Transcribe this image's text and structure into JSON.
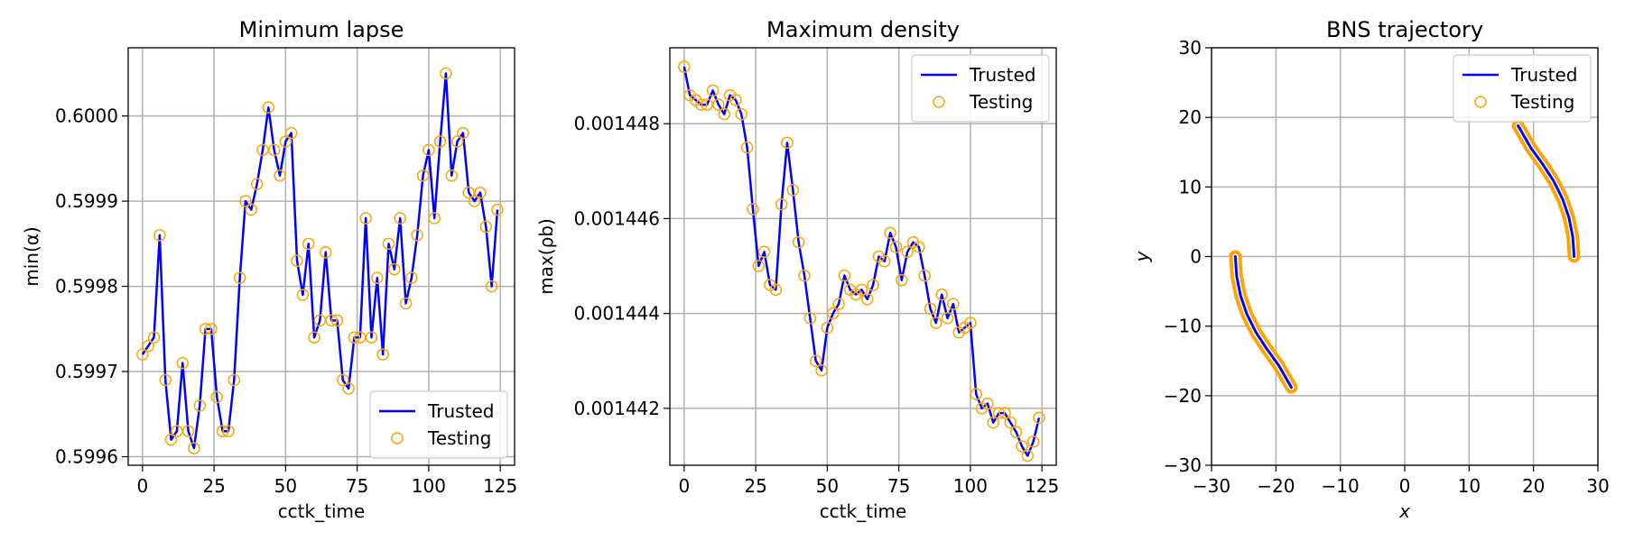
{
  "colors": {
    "trusted": "#0000ff",
    "testing": "#ffa500",
    "grid": "#b0b0b0"
  },
  "chart_data": [
    {
      "type": "line",
      "title": "Minimum lapse",
      "xlabel": "cctk_time",
      "ylabel": "min(α)",
      "xlim": [
        -5,
        130
      ],
      "ylim": [
        0.59959,
        0.60008
      ],
      "xticks": [
        "0",
        "25",
        "50",
        "75",
        "100",
        "125"
      ],
      "yticks": [
        "0.5996",
        "0.5997",
        "0.5998",
        "0.5999",
        "0.6000"
      ],
      "grid": true,
      "legend": {
        "position": "lower-right",
        "entries": [
          "Trusted",
          "Testing"
        ]
      },
      "x": [
        0,
        2,
        4,
        6,
        8,
        10,
        12,
        14,
        16,
        18,
        20,
        22,
        24,
        26,
        28,
        30,
        32,
        34,
        36,
        38,
        40,
        42,
        44,
        46,
        48,
        50,
        52,
        54,
        56,
        58,
        60,
        62,
        64,
        66,
        68,
        70,
        72,
        74,
        76,
        78,
        80,
        82,
        84,
        86,
        88,
        90,
        92,
        94,
        96,
        98,
        100,
        102,
        104,
        106,
        108,
        110,
        112,
        114,
        116,
        118,
        120,
        122,
        124
      ],
      "series": [
        {
          "name": "Trusted",
          "style": "line",
          "values": [
            0.59972,
            0.59973,
            0.59974,
            0.59986,
            0.59969,
            0.59962,
            0.59963,
            0.59971,
            0.59963,
            0.59961,
            0.59966,
            0.59975,
            0.59975,
            0.59967,
            0.59963,
            0.59963,
            0.59969,
            0.59981,
            0.5999,
            0.59989,
            0.59992,
            0.59996,
            0.60001,
            0.59996,
            0.59993,
            0.59997,
            0.59998,
            0.59983,
            0.59979,
            0.59985,
            0.59974,
            0.59976,
            0.59984,
            0.59976,
            0.59976,
            0.59969,
            0.59968,
            0.59974,
            0.59974,
            0.59988,
            0.59974,
            0.59981,
            0.59972,
            0.59985,
            0.59982,
            0.59988,
            0.59978,
            0.59981,
            0.59986,
            0.59993,
            0.59996,
            0.59988,
            0.59997,
            0.60005,
            0.59993,
            0.59997,
            0.59998,
            0.59991,
            0.5999,
            0.59991,
            0.59987,
            0.5998,
            0.59989
          ]
        },
        {
          "name": "Testing",
          "style": "markers",
          "values": [
            0.59972,
            0.59973,
            0.59974,
            0.59986,
            0.59969,
            0.59962,
            0.59963,
            0.59971,
            0.59963,
            0.59961,
            0.59966,
            0.59975,
            0.59975,
            0.59967,
            0.59963,
            0.59963,
            0.59969,
            0.59981,
            0.5999,
            0.59989,
            0.59992,
            0.59996,
            0.60001,
            0.59996,
            0.59993,
            0.59997,
            0.59998,
            0.59983,
            0.59979,
            0.59985,
            0.59974,
            0.59976,
            0.59984,
            0.59976,
            0.59976,
            0.59969,
            0.59968,
            0.59974,
            0.59974,
            0.59988,
            0.59974,
            0.59981,
            0.59972,
            0.59985,
            0.59982,
            0.59988,
            0.59978,
            0.59981,
            0.59986,
            0.59993,
            0.59996,
            0.59988,
            0.59997,
            0.60005,
            0.59993,
            0.59997,
            0.59998,
            0.59991,
            0.5999,
            0.59991,
            0.59987,
            0.5998,
            0.59989
          ]
        }
      ]
    },
    {
      "type": "line",
      "title": "Maximum density",
      "xlabel": "cctk_time",
      "ylabel": "max(ρb)",
      "xlim": [
        -5,
        130
      ],
      "ylim": [
        0.0014408,
        0.0014496
      ],
      "xticks": [
        "0",
        "25",
        "50",
        "75",
        "100",
        "125"
      ],
      "yticks": [
        "0.001442",
        "0.001444",
        "0.001446",
        "0.001448"
      ],
      "grid": true,
      "legend": {
        "position": "top-right",
        "entries": [
          "Trusted",
          "Testing"
        ]
      },
      "x": [
        0,
        2,
        4,
        6,
        8,
        10,
        12,
        14,
        16,
        18,
        20,
        22,
        24,
        26,
        28,
        30,
        32,
        34,
        36,
        38,
        40,
        42,
        44,
        46,
        48,
        50,
        52,
        54,
        56,
        58,
        60,
        62,
        64,
        66,
        68,
        70,
        72,
        74,
        76,
        78,
        80,
        82,
        84,
        86,
        88,
        90,
        92,
        94,
        96,
        98,
        100,
        102,
        104,
        106,
        108,
        110,
        112,
        114,
        116,
        118,
        120,
        122,
        124
      ],
      "series": [
        {
          "name": "Trusted",
          "style": "line",
          "values": [
            0.0014492,
            0.0014486,
            0.0014485,
            0.0014484,
            0.0014484,
            0.0014487,
            0.0014484,
            0.0014482,
            0.0014486,
            0.0014485,
            0.0014482,
            0.0014475,
            0.0014462,
            0.001445,
            0.0014453,
            0.0014446,
            0.0014445,
            0.0014463,
            0.0014476,
            0.0014466,
            0.0014455,
            0.0014448,
            0.0014439,
            0.001443,
            0.0014428,
            0.0014437,
            0.001444,
            0.0014442,
            0.0014448,
            0.0014445,
            0.0014444,
            0.0014445,
            0.0014443,
            0.0014446,
            0.0014452,
            0.0014451,
            0.0014457,
            0.0014454,
            0.0014447,
            0.0014453,
            0.0014455,
            0.0014454,
            0.0014448,
            0.0014441,
            0.0014438,
            0.0014444,
            0.0014439,
            0.0014442,
            0.0014436,
            0.0014437,
            0.0014438,
            0.0014423,
            0.001442,
            0.0014421,
            0.0014417,
            0.0014419,
            0.0014419,
            0.0014417,
            0.0014415,
            0.0014412,
            0.001441,
            0.0014413,
            0.0014418
          ]
        },
        {
          "name": "Testing",
          "style": "markers",
          "values": [
            0.0014492,
            0.0014486,
            0.0014485,
            0.0014484,
            0.0014484,
            0.0014487,
            0.0014484,
            0.0014482,
            0.0014486,
            0.0014485,
            0.0014482,
            0.0014475,
            0.0014462,
            0.001445,
            0.0014453,
            0.0014446,
            0.0014445,
            0.0014463,
            0.0014476,
            0.0014466,
            0.0014455,
            0.0014448,
            0.0014439,
            0.001443,
            0.0014428,
            0.0014437,
            0.001444,
            0.0014442,
            0.0014448,
            0.0014445,
            0.0014444,
            0.0014445,
            0.0014443,
            0.0014446,
            0.0014452,
            0.0014451,
            0.0014457,
            0.0014454,
            0.0014447,
            0.0014453,
            0.0014455,
            0.0014454,
            0.0014448,
            0.0014441,
            0.0014438,
            0.0014444,
            0.0014439,
            0.0014442,
            0.0014436,
            0.0014437,
            0.0014438,
            0.0014423,
            0.001442,
            0.0014421,
            0.0014417,
            0.0014419,
            0.0014419,
            0.0014417,
            0.0014415,
            0.0014412,
            0.001441,
            0.0014413,
            0.0014418
          ]
        }
      ]
    },
    {
      "type": "line",
      "title": "BNS trajectory",
      "xlabel": "x",
      "ylabel": "y",
      "xlim": [
        -30,
        30
      ],
      "ylim": [
        -30,
        30
      ],
      "xticks": [
        "−30",
        "−20",
        "−10",
        "0",
        "10",
        "20",
        "30"
      ],
      "yticks": [
        "−30",
        "−20",
        "−10",
        "0",
        "10",
        "20",
        "30"
      ],
      "grid": true,
      "legend": {
        "position": "top-right",
        "entries": [
          "Trusted",
          "Testing"
        ]
      },
      "series": [
        {
          "name": "Trusted",
          "style": "line",
          "track": "star-1",
          "x": [
            26.3,
            26.1,
            25.5,
            24.5,
            23.1,
            21.4,
            19.6,
            17.6
          ],
          "y": [
            0,
            2.8,
            5.6,
            8.3,
            10.9,
            13.3,
            15.6,
            18.8
          ]
        },
        {
          "name": "Trusted",
          "style": "line",
          "track": "star-2",
          "x": [
            -26.3,
            -26.1,
            -25.5,
            -24.5,
            -23.1,
            -21.4,
            -19.6,
            -17.6
          ],
          "y": [
            0,
            -2.8,
            -5.6,
            -8.3,
            -10.9,
            -13.3,
            -15.6,
            -18.8
          ]
        },
        {
          "name": "Testing",
          "style": "markers",
          "track": "star-1",
          "x": [
            26.3,
            26.1,
            25.5,
            24.5,
            23.1,
            21.4,
            19.6,
            17.6
          ],
          "y": [
            0,
            2.8,
            5.6,
            8.3,
            10.9,
            13.3,
            15.6,
            18.8
          ]
        },
        {
          "name": "Testing",
          "style": "markers",
          "track": "star-2",
          "x": [
            -26.3,
            -26.1,
            -25.5,
            -24.5,
            -23.1,
            -21.4,
            -19.6,
            -17.6
          ],
          "y": [
            0,
            -2.8,
            -5.6,
            -8.3,
            -10.9,
            -13.3,
            -15.6,
            -18.8
          ]
        }
      ]
    }
  ]
}
